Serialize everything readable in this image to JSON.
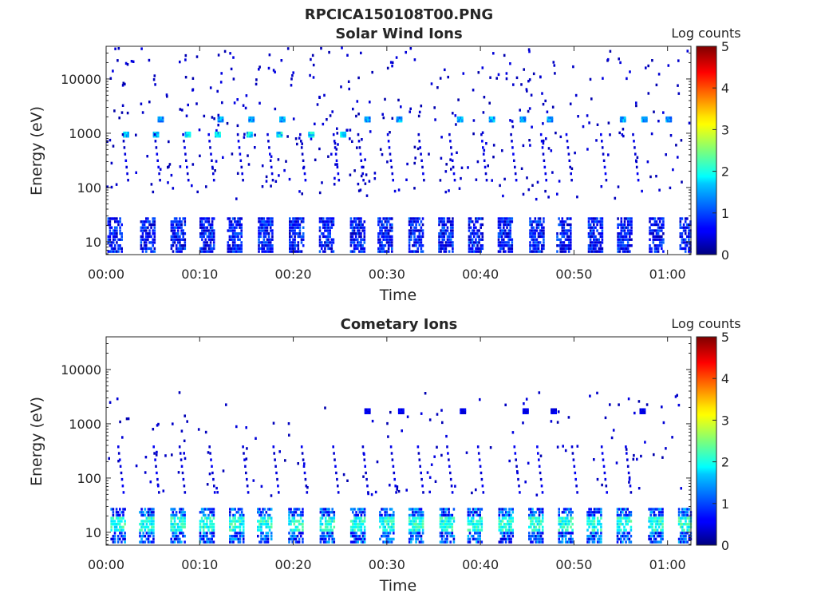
{
  "figure": {
    "title": "RPCICA150108T00.PNG"
  },
  "chart_data": [
    {
      "type": "heatmap",
      "title": "Solar Wind Ions",
      "xlabel": "Time",
      "ylabel": "Energy (eV)",
      "x_range_min": [
        0,
        62.5
      ],
      "xticks": [
        0,
        10,
        20,
        30,
        40,
        50,
        60
      ],
      "xtick_labels": [
        "00:00",
        "00:10",
        "00:20",
        "00:30",
        "00:40",
        "00:50",
        "01:00"
      ],
      "y_scale": "log",
      "y_range_eV": [
        5.8,
        40000
      ],
      "yticks": [
        10,
        100,
        1000,
        10000
      ],
      "ytick_labels": [
        "10",
        "100",
        "1000",
        "10000"
      ],
      "colorbar": {
        "label": "Log counts",
        "range": [
          0,
          5
        ],
        "ticks": [
          "0",
          "1",
          "2",
          "3",
          "4",
          "5"
        ],
        "colormap": "jet"
      },
      "sweep_period_min": 3.2,
      "features": [
        {
          "description_energy_eV": 1000,
          "peak_log_counts": 2.2,
          "times_min": [
            1.8,
            5.0,
            8.4,
            11.6,
            15.0,
            18.2,
            21.6,
            25.0
          ]
        },
        {
          "description_energy_eV": 1900,
          "peak_log_counts": 1.8,
          "times_min": [
            5.5,
            11.9,
            15.2,
            18.5,
            27.6,
            31.0,
            37.5,
            40.9,
            44.2,
            47.1,
            54.9,
            57.2,
            59.8
          ]
        },
        {
          "description_energy_eV": 20,
          "peak_log_counts": 1.0,
          "note": "low-energy blocks each sweep"
        }
      ]
    },
    {
      "type": "heatmap",
      "title": "Cometary Ions",
      "xlabel": "Time",
      "ylabel": "Energy (eV)",
      "x_range_min": [
        0,
        62.5
      ],
      "xticks": [
        0,
        10,
        20,
        30,
        40,
        50,
        60
      ],
      "xtick_labels": [
        "00:00",
        "00:10",
        "00:20",
        "00:30",
        "00:40",
        "00:50",
        "01:00"
      ],
      "y_scale": "log",
      "y_range_eV": [
        5.8,
        40000
      ],
      "yticks": [
        10,
        100,
        1000,
        10000
      ],
      "ytick_labels": [
        "10",
        "100",
        "1000",
        "10000"
      ],
      "colorbar": {
        "label": "Log counts",
        "range": [
          0,
          5
        ],
        "ticks": [
          "0",
          "1",
          "2",
          "3",
          "4",
          "5"
        ],
        "colormap": "jet"
      },
      "sweep_period_min": 3.2,
      "features": [
        {
          "description_energy_eV": 16,
          "peak_log_counts": 2.4,
          "note": "strong low-energy blocks each sweep"
        },
        {
          "description_energy_eV": 1800,
          "peak_log_counts": 0.7,
          "times_min": [
            27.6,
            31.2,
            37.8,
            44.5,
            47.5,
            57.0
          ]
        }
      ]
    }
  ]
}
